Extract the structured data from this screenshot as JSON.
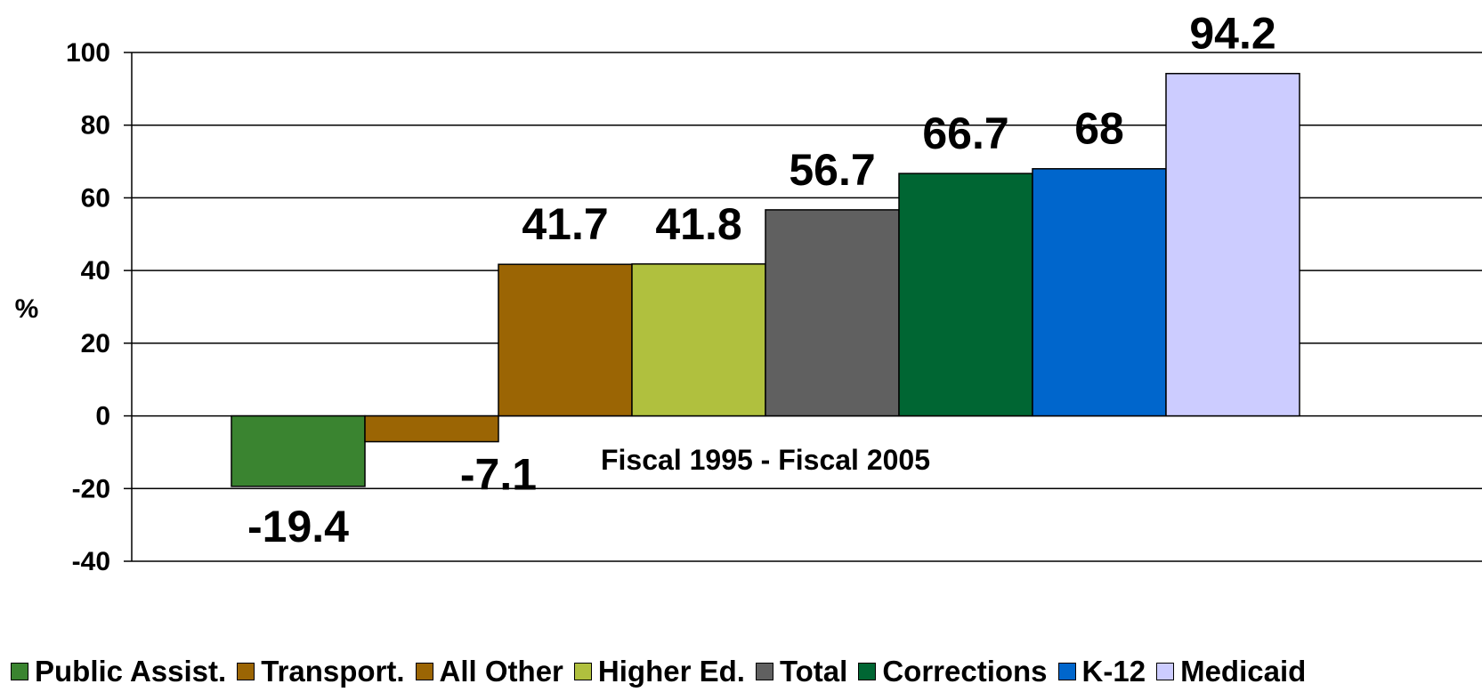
{
  "chart_data": {
    "type": "bar",
    "title": "",
    "xlabel": "",
    "ylabel": "%",
    "ylim": [
      -40,
      100
    ],
    "yticks": [
      100,
      80,
      60,
      40,
      20,
      0,
      -20,
      -40
    ],
    "grid": true,
    "legend_position": "bottom",
    "annotation": "Fiscal 1995 - Fiscal 2005",
    "categories": [
      "Public Assist.",
      "Transport.",
      "All Other",
      "Higher Ed.",
      "Total",
      "Corrections",
      "K-12",
      "Medicaid"
    ],
    "values": [
      -19.4,
      -7.1,
      41.7,
      41.8,
      56.7,
      66.7,
      68,
      94.2
    ],
    "data_labels": [
      "-19.4",
      "-7.1",
      "41.7",
      "41.8",
      "56.7",
      "66.7",
      "68",
      "94.2"
    ],
    "colors": [
      "#3a8430",
      "#9b6504",
      "#9b6504",
      "#b0c03e",
      "#606060",
      "#006633",
      "#0066cc",
      "#ccccff"
    ]
  }
}
